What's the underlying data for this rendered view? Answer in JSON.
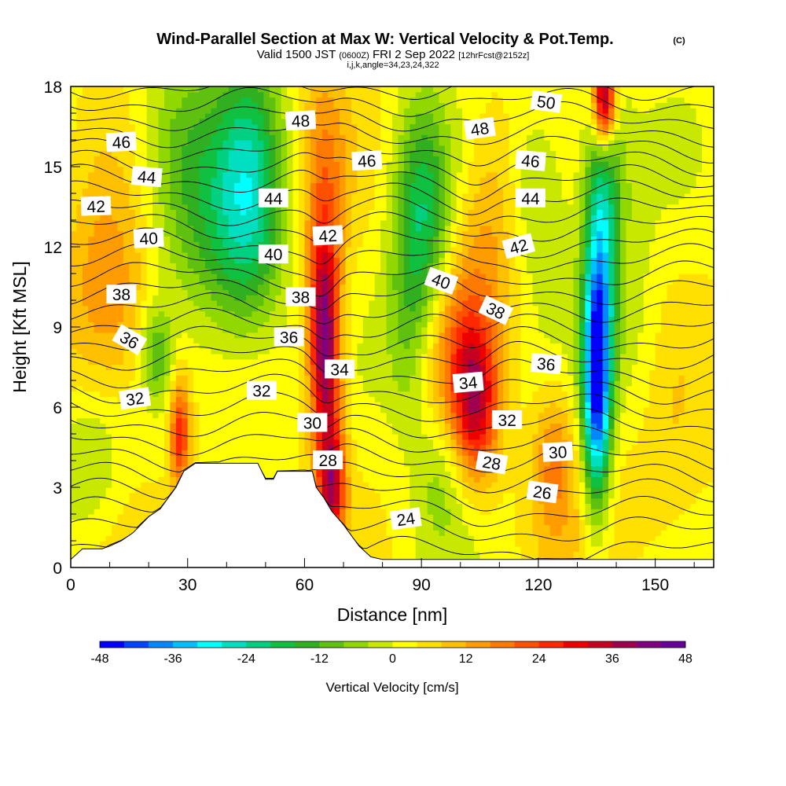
{
  "figure": {
    "title": "Wind-Parallel Section at Max W: Vertical Velocity & Pot.Temp.",
    "title_mark": "(C)",
    "subtitle_pre": "Valid 1500 JST",
    "subtitle_zulu": "(0600Z)",
    "subtitle_date": "FRI 2 Sep 2022",
    "subtitle_run": "[12hrFcst@2152z]",
    "grid_info": "i,j,k,angle=34,23,24,322"
  },
  "chart_data": {
    "type": "heatmap",
    "xlabel": "Distance [nm]",
    "ylabel": "Height [Kft MSL]",
    "xlim": [
      0,
      165
    ],
    "ylim": [
      0,
      18
    ],
    "x_ticks": [
      0,
      30,
      60,
      90,
      120,
      150
    ],
    "y_ticks": [
      0,
      3,
      6,
      9,
      12,
      15,
      18
    ],
    "colorbar": {
      "label": "Vertical Velocity [cm/s]",
      "range": [
        -48,
        48
      ],
      "tick_labels": [
        "-48",
        "-36",
        "-24",
        "-12",
        "0",
        "12",
        "24",
        "36",
        "48"
      ],
      "colors": [
        "#0000ff",
        "#0044ff",
        "#0088ff",
        "#00c0ff",
        "#00ffff",
        "#00e0c0",
        "#00d080",
        "#10c040",
        "#30b020",
        "#60c010",
        "#90d800",
        "#c8e800",
        "#ffff00",
        "#ffe000",
        "#ffc000",
        "#ff9c00",
        "#ff7a00",
        "#ff5000",
        "#ff2800",
        "#ee0000",
        "#c80020",
        "#a00050",
        "#800080",
        "#660099"
      ]
    },
    "velocity_features": [
      {
        "x": 135,
        "y": 6.5,
        "value": -45,
        "sx": 2.5,
        "sy": 3.0
      },
      {
        "x": 136,
        "y": 11.0,
        "value": -24,
        "sx": 3.0,
        "sy": 3.0
      },
      {
        "x": 137,
        "y": 15.0,
        "value": -14,
        "sx": 4.0,
        "sy": 2.5
      },
      {
        "x": 137,
        "y": 17.5,
        "value": 42,
        "sx": 2.0,
        "sy": 1.2
      },
      {
        "x": 46,
        "y": 14.5,
        "value": -20,
        "sx": 6.0,
        "sy": 3.5
      },
      {
        "x": 40,
        "y": 12.0,
        "value": -12,
        "sx": 9.0,
        "sy": 3.0
      },
      {
        "x": 28,
        "y": 15.5,
        "value": -12,
        "sx": 8.0,
        "sy": 3.0
      },
      {
        "x": 22,
        "y": 8.0,
        "value": -14,
        "sx": 3.0,
        "sy": 1.3
      },
      {
        "x": 90,
        "y": 13.0,
        "value": -22,
        "sx": 5.0,
        "sy": 3.0
      },
      {
        "x": 86,
        "y": 8.5,
        "value": -8,
        "sx": 4.0,
        "sy": 2.5
      },
      {
        "x": 120,
        "y": 14.0,
        "value": -10,
        "sx": 6.0,
        "sy": 2.5
      },
      {
        "x": 5,
        "y": 4.0,
        "value": -8,
        "sx": 6.0,
        "sy": 2.0
      },
      {
        "x": 95,
        "y": 3.5,
        "value": -8,
        "sx": 5.0,
        "sy": 2.0
      },
      {
        "x": 145,
        "y": 8.0,
        "value": -6,
        "sx": 5.0,
        "sy": 4.0
      },
      {
        "x": 65,
        "y": 9.0,
        "value": 28,
        "sx": 2.5,
        "sy": 2.5
      },
      {
        "x": 67,
        "y": 3.0,
        "value": 26,
        "sx": 2.5,
        "sy": 1.5
      },
      {
        "x": 66,
        "y": 6.0,
        "value": 16,
        "sx": 3.0,
        "sy": 2.5
      },
      {
        "x": 104,
        "y": 6.0,
        "value": 24,
        "sx": 4.0,
        "sy": 2.0
      },
      {
        "x": 100,
        "y": 8.0,
        "value": 14,
        "sx": 6.0,
        "sy": 2.5
      },
      {
        "x": 28,
        "y": 5.0,
        "value": 24,
        "sx": 1.8,
        "sy": 1.5
      },
      {
        "x": 10,
        "y": 10.0,
        "value": 14,
        "sx": 8.0,
        "sy": 3.0
      },
      {
        "x": 65,
        "y": 13.0,
        "value": 14,
        "sx": 4.0,
        "sy": 4.0
      },
      {
        "x": 108,
        "y": 13.0,
        "value": 10,
        "sx": 6.0,
        "sy": 3.0
      },
      {
        "x": 124,
        "y": 4.0,
        "value": 14,
        "sx": 4.0,
        "sy": 2.0
      },
      {
        "x": 148,
        "y": 3.0,
        "value": 6,
        "sx": 10.0,
        "sy": 3.0
      }
    ],
    "terrain": [
      [
        0,
        0.3
      ],
      [
        3,
        0.7
      ],
      [
        8,
        0.7
      ],
      [
        10,
        0.8
      ],
      [
        13,
        1.0
      ],
      [
        16,
        1.3
      ],
      [
        18,
        1.6
      ],
      [
        20,
        1.9
      ],
      [
        23,
        2.2
      ],
      [
        25,
        2.6
      ],
      [
        27,
        3.0
      ],
      [
        29,
        3.6
      ],
      [
        32,
        3.9
      ],
      [
        48,
        3.9
      ],
      [
        50,
        3.3
      ],
      [
        52,
        3.3
      ],
      [
        53,
        3.6
      ],
      [
        62,
        3.6
      ],
      [
        63,
        3.0
      ],
      [
        65,
        2.6
      ],
      [
        67,
        2.1
      ],
      [
        70,
        1.6
      ],
      [
        72,
        1.2
      ],
      [
        74,
        0.8
      ],
      [
        77,
        0.4
      ],
      [
        80,
        0.3
      ],
      [
        165,
        0.3
      ]
    ],
    "theta_levels": [
      22,
      23,
      24,
      25,
      26,
      27,
      28,
      29,
      30,
      31,
      32,
      33,
      34,
      35,
      36,
      37,
      38,
      39,
      40,
      41,
      42,
      43,
      44,
      45,
      46,
      47,
      48,
      49,
      50,
      51
    ],
    "theta_labels": [
      {
        "text": "46",
        "x": 13,
        "y": 15.9,
        "angle": -3
      },
      {
        "text": "44",
        "x": 19.5,
        "y": 14.6,
        "angle": 5
      },
      {
        "text": "42",
        "x": 6.5,
        "y": 13.5,
        "angle": -2
      },
      {
        "text": "40",
        "x": 20,
        "y": 12.3,
        "angle": -3
      },
      {
        "text": "38",
        "x": 13,
        "y": 10.2,
        "angle": 0
      },
      {
        "text": "36",
        "x": 15,
        "y": 8.5,
        "angle": 30
      },
      {
        "text": "32",
        "x": 16.5,
        "y": 6.3,
        "angle": -8
      },
      {
        "text": "48",
        "x": 59,
        "y": 16.7,
        "angle": -3
      },
      {
        "text": "44",
        "x": 52,
        "y": 13.8,
        "angle": 0
      },
      {
        "text": "40",
        "x": 52,
        "y": 11.7,
        "angle": 0
      },
      {
        "text": "38",
        "x": 59,
        "y": 10.1,
        "angle": 0
      },
      {
        "text": "36",
        "x": 56,
        "y": 8.6,
        "angle": 0
      },
      {
        "text": "32",
        "x": 49,
        "y": 6.6,
        "angle": 0
      },
      {
        "text": "30",
        "x": 62,
        "y": 5.4,
        "angle": 0
      },
      {
        "text": "28",
        "x": 66,
        "y": 4.0,
        "angle": 0
      },
      {
        "text": "34",
        "x": 69,
        "y": 7.4,
        "angle": 0
      },
      {
        "text": "42",
        "x": 66,
        "y": 12.4,
        "angle": -3
      },
      {
        "text": "46",
        "x": 76,
        "y": 15.2,
        "angle": -3
      },
      {
        "text": "24",
        "x": 86,
        "y": 1.8,
        "angle": -8
      },
      {
        "text": "40",
        "x": 95,
        "y": 10.7,
        "angle": 20
      },
      {
        "text": "34",
        "x": 102,
        "y": 6.9,
        "angle": -5
      },
      {
        "text": "48",
        "x": 105,
        "y": 16.4,
        "angle": -8
      },
      {
        "text": "38",
        "x": 109,
        "y": 9.6,
        "angle": 25
      },
      {
        "text": "32",
        "x": 112,
        "y": 5.5,
        "angle": 0
      },
      {
        "text": "28",
        "x": 108,
        "y": 3.9,
        "angle": 10
      },
      {
        "text": "42",
        "x": 115,
        "y": 12.0,
        "angle": -15
      },
      {
        "text": "46",
        "x": 118,
        "y": 15.2,
        "angle": 5
      },
      {
        "text": "44",
        "x": 118,
        "y": 13.8,
        "angle": 0
      },
      {
        "text": "50",
        "x": 122,
        "y": 17.4,
        "angle": 8
      },
      {
        "text": "36",
        "x": 122,
        "y": 7.6,
        "angle": 5
      },
      {
        "text": "30",
        "x": 125,
        "y": 4.3,
        "angle": -3
      },
      {
        "text": "26",
        "x": 121,
        "y": 2.8,
        "angle": 8
      }
    ]
  }
}
